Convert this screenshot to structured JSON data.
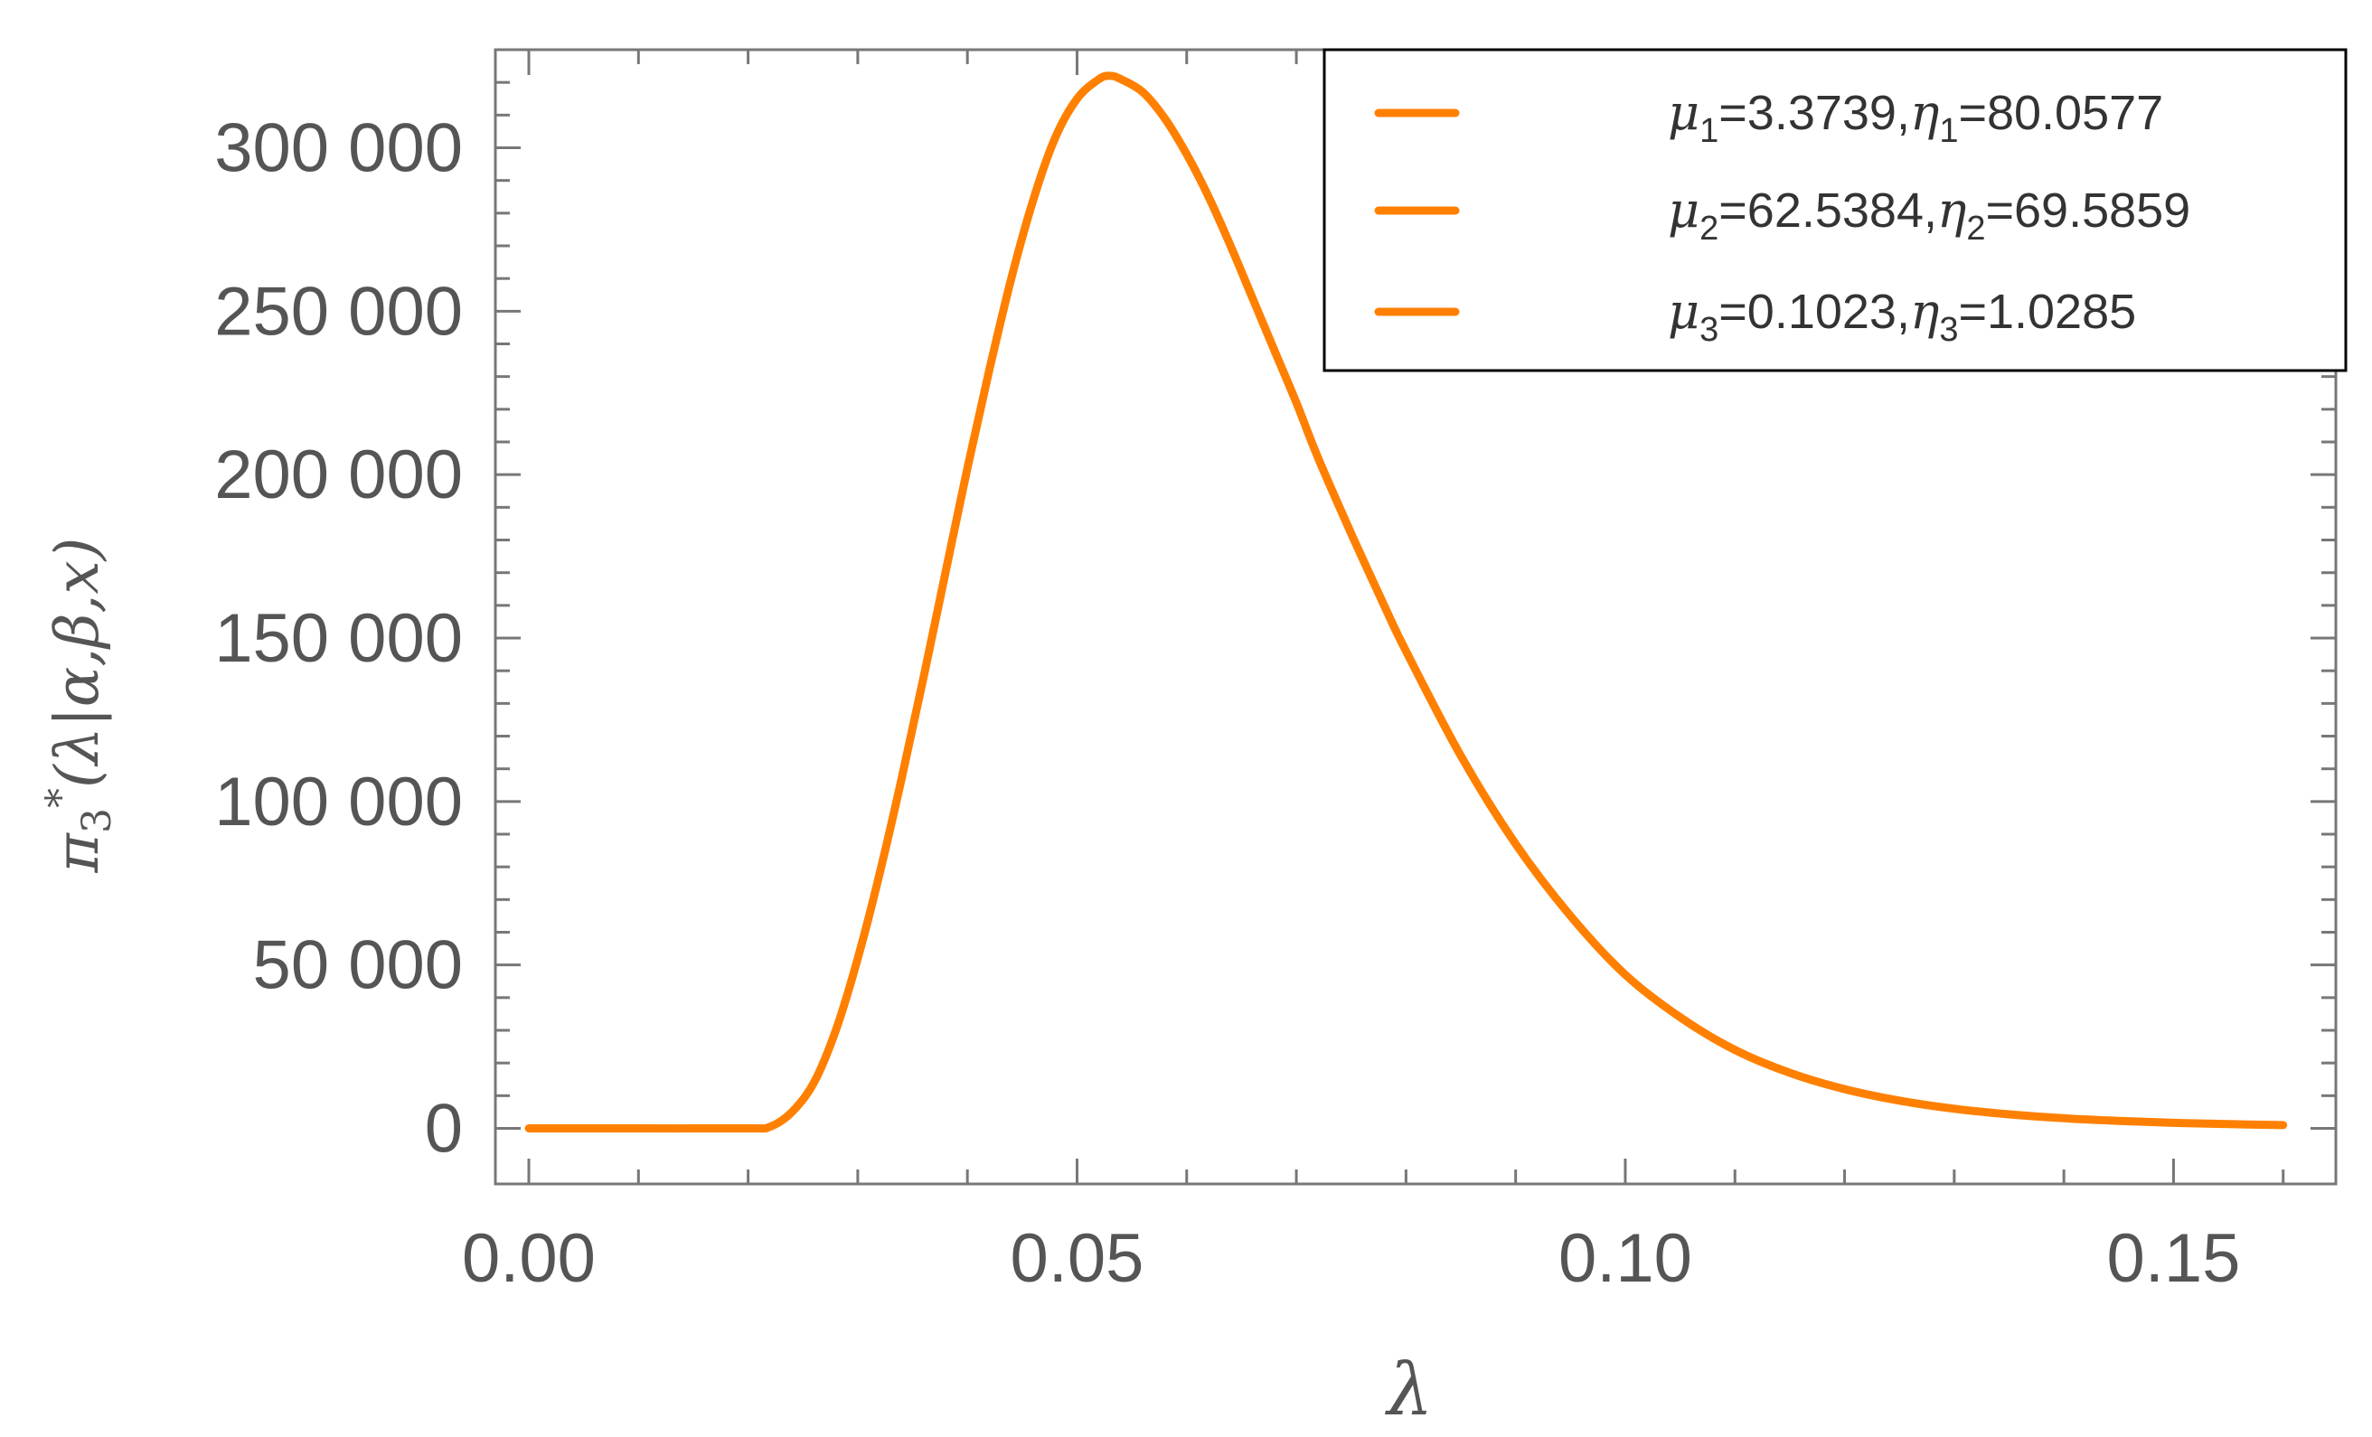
{
  "chart_data": {
    "type": "line",
    "xlabel": "λ",
    "ylabel": {
      "symbol": "π",
      "subscript": "3",
      "superscript": "*",
      "args": "(λ|α,β,x)"
    },
    "xlim": [
      0.0,
      0.162
    ],
    "ylim": [
      -17000,
      330000
    ],
    "x_ticks": [
      0.0,
      0.05,
      0.1,
      0.15
    ],
    "x_tick_labels": [
      "0.00",
      "0.05",
      "0.10",
      "0.15"
    ],
    "y_ticks": [
      0,
      50000,
      100000,
      150000,
      200000,
      250000,
      300000
    ],
    "y_tick_labels": [
      "0",
      "50 000",
      "100 000",
      "150 000",
      "200 000",
      "250 000",
      "300 000"
    ],
    "grid": false,
    "legend_position": "top-right",
    "legend": [
      {
        "mu": "μ",
        "mu_sub": "1",
        "mu_val": "=3.3739,",
        "eta": "η",
        "eta_sub": "1",
        "eta_val": "=80.0577"
      },
      {
        "mu": "μ",
        "mu_sub": "2",
        "mu_val": "=62.5384,",
        "eta": "η",
        "eta_sub": "2",
        "eta_val": "=69.5859"
      },
      {
        "mu": "μ",
        "mu_sub": "3",
        "mu_val": "=0.1023,",
        "eta": "η",
        "eta_sub": "3",
        "eta_val": "=1.0285"
      }
    ],
    "series": [
      {
        "color": "#ff8000",
        "x": [
          0.0,
          0.01,
          0.02,
          0.022,
          0.024,
          0.026,
          0.028,
          0.03,
          0.032,
          0.034,
          0.036,
          0.038,
          0.04,
          0.042,
          0.044,
          0.046,
          0.048,
          0.05,
          0.052,
          0.053,
          0.054,
          0.056,
          0.058,
          0.06,
          0.062,
          0.064,
          0.066,
          0.068,
          0.07,
          0.072,
          0.075,
          0.078,
          0.08,
          0.085,
          0.09,
          0.095,
          0.1,
          0.105,
          0.11,
          0.115,
          0.12,
          0.125,
          0.13,
          0.135,
          0.14,
          0.145,
          0.15,
          0.155,
          0.16
        ],
        "y": [
          0,
          0,
          0,
          500,
          5000,
          14000,
          30000,
          52000,
          78000,
          107000,
          138000,
          170000,
          202000,
          232000,
          260000,
          284000,
          303000,
          315000,
          321000,
          322000,
          321000,
          317000,
          309000,
          298000,
          285000,
          270000,
          254000,
          238000,
          222000,
          205000,
          182000,
          160000,
          146000,
          114000,
          87000,
          65000,
          47000,
          34000,
          24000,
          17000,
          12000,
          8500,
          6000,
          4300,
          3100,
          2300,
          1700,
          1300,
          1000
        ]
      }
    ]
  }
}
